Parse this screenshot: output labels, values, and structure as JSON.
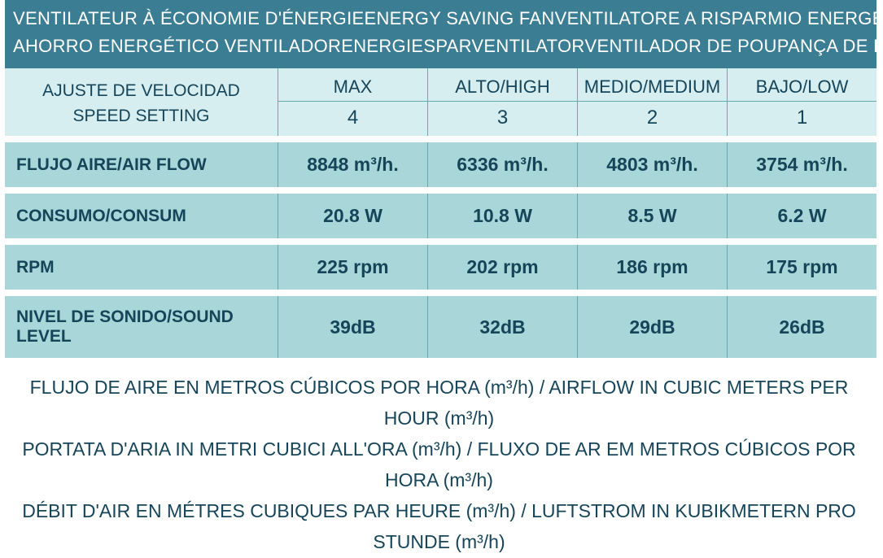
{
  "colors": {
    "header_bg": "#3b7e94",
    "header_fg": "#ffffff",
    "light_bg": "#d6eef0",
    "band_bg": "#a9d6d8",
    "divider": "#6aa8b0",
    "cell_fg": "#16455a"
  },
  "header": {
    "titles_row1": [
      "VENTILATEUR À ÉCONOMIE D'ÉNERGIE",
      "ENERGY SAVING FAN",
      "VENTILATORE A RISPARMIO ENERGETICO"
    ],
    "titles_row2": [
      "AHORRO ENERGÉTICO VENTILADOR",
      "ENERGIESPARVENTILATOR",
      "VENTILADOR DE POUPANÇA DE ENERGIA"
    ]
  },
  "speed": {
    "label_line1": "AJUSTE DE VELOCIDAD",
    "label_line2": "SPEED SETTING",
    "names": [
      "MAX",
      "ALTO/HIGH",
      "MEDIO/MEDIUM",
      "BAJO/LOW"
    ],
    "numbers": [
      "4",
      "3",
      "2",
      "1"
    ]
  },
  "rows": [
    {
      "label": "FLUJO AIRE/AIR FLOW",
      "values": [
        "8848 m³/h.",
        "6336 m³/h.",
        "4803 m³/h.",
        "3754 m³/h."
      ]
    },
    {
      "label": "CONSUMO/CONSUM",
      "values": [
        "20.8 W",
        "10.8 W",
        "8.5 W",
        "6.2 W"
      ]
    },
    {
      "label": "RPM",
      "values": [
        "225 rpm",
        "202 rpm",
        "186 rpm",
        "175 rpm"
      ]
    },
    {
      "label": "NIVEL DE SONIDO/SOUND LEVEL",
      "values": [
        "39dB",
        "32dB",
        "29dB",
        "26dB"
      ]
    }
  ],
  "footer": {
    "line1": "FLUJO DE AIRE EN METROS CÚBICOS POR HORA (m³/h) / AIRFLOW IN CUBIC METERS PER HOUR (m³/h)",
    "line2": "PORTATA D'ARIA IN METRI CUBICI ALL'ORA (m³/h) / FLUXO DE AR EM METROS CÚBICOS POR HORA  (m³/h)",
    "line3": "DÉBIT D'AIR EN MÉTRES CUBIQUES PAR HEURE (m³/h) / LUFTSTROM IN KUBIKMETERN PRO STUNDE (m³/h)"
  }
}
